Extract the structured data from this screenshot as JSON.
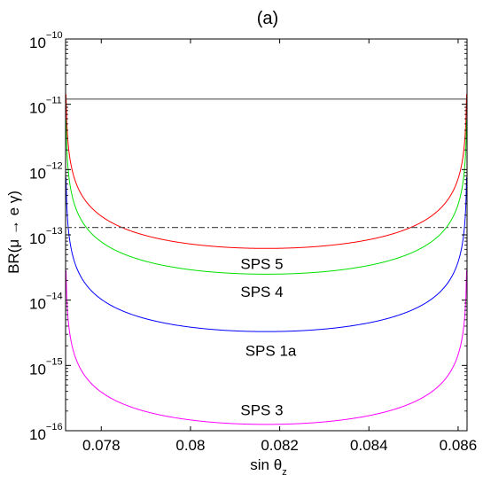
{
  "chart_data": {
    "type": "line",
    "title": "(a)",
    "xlabel": "sin θ",
    "xlabel_sub": "z",
    "ylabel": "BR(μ → e γ)",
    "ylog": true,
    "xlim": [
      0.0772,
      0.0862
    ],
    "ylim": [
      1e-16,
      1e-10
    ],
    "grid": false,
    "x_ticks": [
      {
        "value": 0.078,
        "label": "0.078"
      },
      {
        "value": 0.08,
        "label": "0.08"
      },
      {
        "value": 0.082,
        "label": "0.082"
      },
      {
        "value": 0.084,
        "label": "0.084"
      },
      {
        "value": 0.086,
        "label": "0.086"
      }
    ],
    "y_ticks": [
      {
        "value": 1e-10,
        "base": "10",
        "exp": "−10"
      },
      {
        "value": 1e-11,
        "base": "10",
        "exp": "−11"
      },
      {
        "value": 1e-12,
        "base": "10",
        "exp": "−12"
      },
      {
        "value": 1e-13,
        "base": "10",
        "exp": "−13"
      },
      {
        "value": 1e-14,
        "base": "10",
        "exp": "−14"
      },
      {
        "value": 1e-15,
        "base": "10",
        "exp": "−15"
      },
      {
        "value": 1e-16,
        "base": "10",
        "exp": "−16"
      }
    ],
    "reference_lines": [
      {
        "y": 1.2e-11,
        "style": "solid",
        "color": "#000000"
      },
      {
        "y": 1.3e-13,
        "style": "dashdot",
        "color": "#000000"
      }
    ],
    "curve_shape": {
      "x_left": 0.0772,
      "x_right": 0.0862,
      "x_min": 0.0816
    },
    "series": [
      {
        "name": "SPS 5",
        "color": "#ff0000",
        "min_value": 6.2e-14,
        "label_x": 0.0816,
        "label_y": 3.6e-14
      },
      {
        "name": "SPS 4",
        "color": "#00e000",
        "min_value": 2.5e-14,
        "label_x": 0.0816,
        "label_y": 1.35e-14
      },
      {
        "name": "SPS 1a",
        "color": "#0000ff",
        "min_value": 3.3e-15,
        "label_x": 0.0818,
        "label_y": 1.7e-15
      },
      {
        "name": "SPS 3",
        "color": "#ff00ff",
        "min_value": 1.25e-16,
        "label_x": 0.0816,
        "label_y": 2.1e-16
      }
    ]
  }
}
